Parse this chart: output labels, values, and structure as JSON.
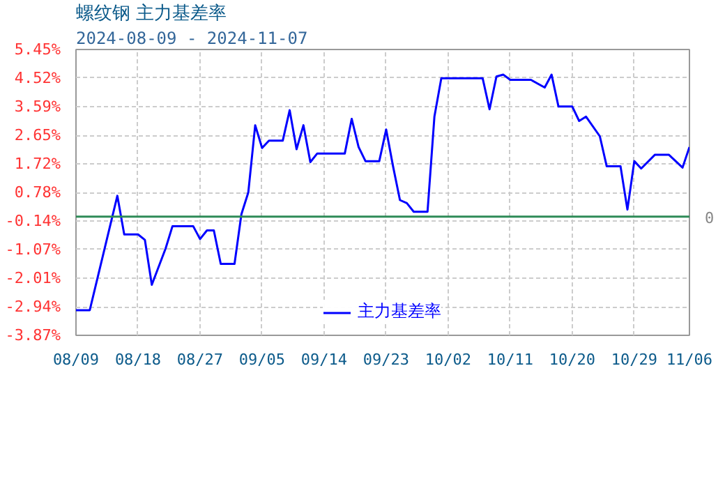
{
  "chart_data": {
    "type": "line",
    "title": "螺纹钢 主力基差率",
    "subtitle": "2024-08-09 - 2024-11-07",
    "x": [
      "2024-08-09",
      "2024-08-11",
      "2024-08-15",
      "2024-08-16",
      "2024-08-18",
      "2024-08-19",
      "2024-08-20",
      "2024-08-22",
      "2024-08-23",
      "2024-08-26",
      "2024-08-27",
      "2024-08-28",
      "2024-08-29",
      "2024-08-30",
      "2024-09-01",
      "2024-09-02",
      "2024-09-03",
      "2024-09-04",
      "2024-09-05",
      "2024-09-06",
      "2024-09-08",
      "2024-09-09",
      "2024-09-10",
      "2024-09-11",
      "2024-09-12",
      "2024-09-13",
      "2024-09-17",
      "2024-09-18",
      "2024-09-19",
      "2024-09-20",
      "2024-09-22",
      "2024-09-23",
      "2024-09-24",
      "2024-09-25",
      "2024-09-26",
      "2024-09-27",
      "2024-09-29",
      "2024-09-30",
      "2024-10-01",
      "2024-10-07",
      "2024-10-08",
      "2024-10-09",
      "2024-10-10",
      "2024-10-11",
      "2024-10-14",
      "2024-10-16",
      "2024-10-17",
      "2024-10-18",
      "2024-10-20",
      "2024-10-21",
      "2024-10-22",
      "2024-10-24",
      "2024-10-25",
      "2024-10-27",
      "2024-10-28",
      "2024-10-29",
      "2024-10-30",
      "2024-11-01",
      "2024-11-03",
      "2024-11-05",
      "2024-11-06"
    ],
    "series": [
      {
        "name": "主力基差率",
        "color": "#0000ff",
        "values": [
          -3.05,
          -3.05,
          0.68,
          -0.58,
          -0.58,
          -0.76,
          -2.22,
          -1.04,
          -0.31,
          -0.31,
          -0.73,
          -0.45,
          -0.45,
          -1.54,
          -1.54,
          0.08,
          0.79,
          2.98,
          2.24,
          2.48,
          2.48,
          3.47,
          2.2,
          2.98,
          1.78,
          2.06,
          2.06,
          3.19,
          2.27,
          1.81,
          1.81,
          2.84,
          1.64,
          0.54,
          0.44,
          0.16,
          0.16,
          3.26,
          4.51,
          4.51,
          3.5,
          4.57,
          4.63,
          4.46,
          4.46,
          4.21,
          4.63,
          3.59,
          3.59,
          3.12,
          3.26,
          2.62,
          1.64,
          1.64,
          0.23,
          1.81,
          1.57,
          2.02,
          2.02,
          1.6,
          2.27
        ]
      }
    ],
    "xlim": [
      "2024-08-09",
      "2024-11-06"
    ],
    "xticks": [
      {
        "value": "2024-08-09",
        "label": "08/09"
      },
      {
        "value": "2024-08-18",
        "label": "08/18"
      },
      {
        "value": "2024-08-27",
        "label": "08/27"
      },
      {
        "value": "2024-09-05",
        "label": "09/05"
      },
      {
        "value": "2024-09-14",
        "label": "09/14"
      },
      {
        "value": "2024-09-23",
        "label": "09/23"
      },
      {
        "value": "2024-10-02",
        "label": "10/02"
      },
      {
        "value": "2024-10-11",
        "label": "10/11"
      },
      {
        "value": "2024-10-20",
        "label": "10/20"
      },
      {
        "value": "2024-10-29",
        "label": "10/29"
      },
      {
        "value": "2024-11-06",
        "label": "11/06"
      }
    ],
    "ylim": [
      -3.87,
      5.45
    ],
    "yticks": [
      {
        "value": 5.45,
        "label": "5.45%"
      },
      {
        "value": 4.52,
        "label": "4.52%"
      },
      {
        "value": 3.59,
        "label": "3.59%"
      },
      {
        "value": 2.65,
        "label": "2.65%"
      },
      {
        "value": 1.72,
        "label": "1.72%"
      },
      {
        "value": 0.78,
        "label": "0.78%"
      },
      {
        "value": -0.14,
        "label": "-0.14%"
      },
      {
        "value": -1.07,
        "label": "-1.07%"
      },
      {
        "value": -2.01,
        "label": "-2.01%"
      },
      {
        "value": -2.94,
        "label": "-2.94%"
      },
      {
        "value": -3.87,
        "label": "-3.87%"
      }
    ],
    "ref_lines": [
      {
        "axis": "y",
        "value": 0,
        "label": "0",
        "color": "#2e8b57"
      }
    ],
    "grid": true,
    "legend": "bottom",
    "line_style": "solid",
    "marker": "none"
  }
}
